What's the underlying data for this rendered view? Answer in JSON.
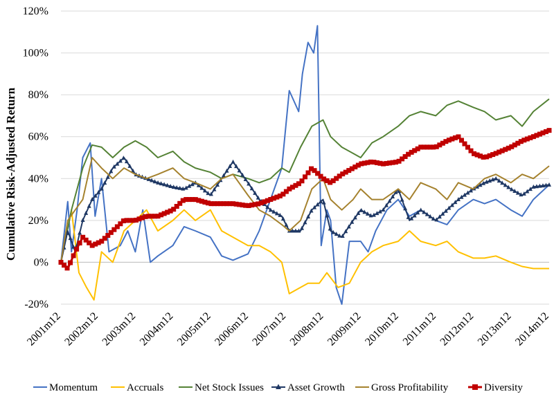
{
  "chart_data": {
    "type": "line",
    "title": "",
    "xlabel": "",
    "ylabel": "Cumulative Risk-Adjusted Return",
    "ylim": [
      -20,
      120
    ],
    "y_ticks": [
      "-20%",
      "0%",
      "20%",
      "40%",
      "60%",
      "80%",
      "100%",
      "120%"
    ],
    "y_tick_values": [
      -20,
      0,
      20,
      40,
      60,
      80,
      100,
      120
    ],
    "x_ticks": [
      "2001m12",
      "2002m12",
      "2003m12",
      "2004m12",
      "2005m12",
      "2006m12",
      "2007m12",
      "2008m12",
      "2009m12",
      "2010m12",
      "2011m12",
      "2012m12",
      "2013m12",
      "2014m12"
    ],
    "x_tick_values": [
      2001.92,
      2002.92,
      2003.92,
      2004.92,
      2005.92,
      2006.92,
      2007.92,
      2008.92,
      2009.92,
      2010.92,
      2011.92,
      2012.92,
      2013.92,
      2014.92
    ],
    "xlim": [
      2001.92,
      2014.92
    ],
    "grid": "horizontal",
    "legend_position": "bottom",
    "series": [
      {
        "name": "Momentum",
        "color": "#4472C4",
        "marker": "none",
        "x": [
          2001.92,
          2002.1,
          2002.2,
          2002.35,
          2002.5,
          2002.7,
          2002.83,
          2003.0,
          2003.2,
          2003.5,
          2003.7,
          2003.9,
          2004.1,
          2004.3,
          2004.5,
          2004.9,
          2005.2,
          2005.5,
          2005.9,
          2006.2,
          2006.5,
          2006.9,
          2007.2,
          2007.5,
          2007.8,
          2008.0,
          2008.25,
          2008.35,
          2008.5,
          2008.65,
          2008.75,
          2008.85,
          2009.0,
          2009.1,
          2009.25,
          2009.4,
          2009.6,
          2009.9,
          2010.1,
          2010.3,
          2010.6,
          2010.9,
          2011.2,
          2011.5,
          2011.9,
          2012.2,
          2012.5,
          2012.9,
          2013.2,
          2013.5,
          2013.9,
          2014.2,
          2014.5,
          2014.92
        ],
        "y": [
          0,
          29,
          5,
          25,
          50,
          57,
          22,
          40,
          5,
          8,
          15,
          5,
          25,
          0,
          3,
          8,
          17,
          15,
          12,
          3,
          1,
          4,
          15,
          30,
          45,
          82,
          72,
          90,
          105,
          100,
          113,
          8,
          25,
          20,
          -12,
          -20,
          10,
          10,
          5,
          15,
          25,
          30,
          22,
          25,
          20,
          18,
          25,
          30,
          28,
          30,
          25,
          22,
          30,
          37
        ]
      },
      {
        "name": "Accruals",
        "color": "#FFC000",
        "marker": "none",
        "x": [
          2001.92,
          2002.2,
          2002.4,
          2002.6,
          2002.8,
          2003.0,
          2003.3,
          2003.6,
          2003.9,
          2004.2,
          2004.5,
          2004.9,
          2005.2,
          2005.5,
          2005.9,
          2006.2,
          2006.5,
          2006.9,
          2007.2,
          2007.5,
          2007.8,
          2008.0,
          2008.3,
          2008.5,
          2008.8,
          2009.0,
          2009.3,
          2009.6,
          2009.9,
          2010.2,
          2010.5,
          2010.9,
          2011.2,
          2011.5,
          2011.9,
          2012.2,
          2012.5,
          2012.9,
          2013.2,
          2013.5,
          2013.9,
          2014.2,
          2014.5,
          2014.92
        ],
        "y": [
          0,
          25,
          -5,
          -12,
          -18,
          5,
          0,
          15,
          20,
          25,
          15,
          20,
          25,
          20,
          25,
          15,
          12,
          8,
          8,
          5,
          0,
          -15,
          -12,
          -10,
          -10,
          -5,
          -12,
          -10,
          0,
          5,
          8,
          10,
          15,
          10,
          8,
          10,
          5,
          2,
          2,
          3,
          0,
          -2,
          -3,
          -3
        ]
      },
      {
        "name": "Net Stock Issues",
        "color": "#548235",
        "marker": "none",
        "x": [
          2001.92,
          2002.2,
          2002.5,
          2002.75,
          2003.0,
          2003.3,
          2003.6,
          2003.9,
          2004.2,
          2004.5,
          2004.9,
          2005.2,
          2005.5,
          2005.9,
          2006.2,
          2006.5,
          2006.9,
          2007.2,
          2007.5,
          2007.8,
          2008.0,
          2008.3,
          2008.6,
          2008.9,
          2009.1,
          2009.4,
          2009.7,
          2009.9,
          2010.2,
          2010.5,
          2010.9,
          2011.2,
          2011.5,
          2011.9,
          2012.2,
          2012.5,
          2012.9,
          2013.2,
          2013.5,
          2013.9,
          2014.2,
          2014.5,
          2014.92
        ],
        "y": [
          0,
          25,
          45,
          56,
          55,
          50,
          55,
          58,
          55,
          50,
          53,
          48,
          45,
          43,
          40,
          42,
          40,
          38,
          40,
          45,
          43,
          55,
          65,
          68,
          60,
          55,
          52,
          50,
          57,
          60,
          65,
          70,
          72,
          70,
          75,
          77,
          74,
          72,
          68,
          70,
          65,
          72,
          78
        ]
      },
      {
        "name": "Asset Growth",
        "color": "#1F3864",
        "marker": "triangle",
        "x": [
          2001.92,
          2002.1,
          2002.3,
          2002.5,
          2002.75,
          2003.0,
          2003.3,
          2003.6,
          2003.9,
          2004.2,
          2004.5,
          2004.9,
          2005.2,
          2005.5,
          2005.9,
          2006.2,
          2006.5,
          2006.9,
          2007.2,
          2007.5,
          2007.8,
          2008.0,
          2008.3,
          2008.6,
          2008.9,
          2009.1,
          2009.4,
          2009.7,
          2009.9,
          2010.2,
          2010.5,
          2010.9,
          2011.2,
          2011.5,
          2011.9,
          2012.2,
          2012.5,
          2012.9,
          2013.2,
          2013.5,
          2013.9,
          2014.2,
          2014.5,
          2014.92
        ],
        "y": [
          0,
          15,
          5,
          20,
          30,
          35,
          45,
          50,
          42,
          40,
          38,
          36,
          35,
          38,
          32,
          40,
          48,
          38,
          30,
          25,
          22,
          15,
          15,
          25,
          30,
          15,
          12,
          20,
          25,
          22,
          25,
          35,
          20,
          25,
          20,
          25,
          30,
          35,
          38,
          40,
          35,
          32,
          36,
          37
        ]
      },
      {
        "name": "Gross Profitability",
        "color": "#A5822E",
        "marker": "none",
        "x": [
          2001.92,
          2002.1,
          2002.3,
          2002.5,
          2002.75,
          2003.0,
          2003.3,
          2003.6,
          2003.9,
          2004.2,
          2004.5,
          2004.9,
          2005.2,
          2005.5,
          2005.9,
          2006.2,
          2006.5,
          2006.9,
          2007.2,
          2007.5,
          2007.8,
          2008.0,
          2008.3,
          2008.6,
          2008.9,
          2009.1,
          2009.4,
          2009.7,
          2009.9,
          2010.2,
          2010.5,
          2010.9,
          2011.2,
          2011.5,
          2011.9,
          2012.2,
          2012.5,
          2012.9,
          2013.2,
          2013.5,
          2013.9,
          2014.2,
          2014.5,
          2014.92
        ],
        "y": [
          0,
          20,
          25,
          30,
          50,
          45,
          40,
          45,
          42,
          40,
          42,
          45,
          40,
          38,
          35,
          40,
          42,
          32,
          25,
          22,
          18,
          15,
          20,
          35,
          40,
          30,
          25,
          30,
          35,
          30,
          30,
          35,
          30,
          38,
          35,
          30,
          38,
          35,
          40,
          42,
          38,
          42,
          40,
          46
        ]
      },
      {
        "name": "Diversity",
        "color": "#C00000",
        "marker": "square",
        "x": [
          2001.92,
          2002.1,
          2002.3,
          2002.5,
          2002.75,
          2003.0,
          2003.3,
          2003.6,
          2003.9,
          2004.2,
          2004.5,
          2004.9,
          2005.2,
          2005.5,
          2005.9,
          2006.2,
          2006.5,
          2006.9,
          2007.2,
          2007.5,
          2007.8,
          2008.0,
          2008.3,
          2008.6,
          2008.9,
          2009.1,
          2009.4,
          2009.7,
          2009.9,
          2010.2,
          2010.5,
          2010.9,
          2011.2,
          2011.5,
          2011.9,
          2012.2,
          2012.5,
          2012.9,
          2013.2,
          2013.5,
          2013.9,
          2014.2,
          2014.5,
          2014.92
        ],
        "y": [
          0,
          -3,
          5,
          12,
          8,
          10,
          15,
          20,
          20,
          22,
          22,
          25,
          30,
          30,
          28,
          28,
          28,
          27,
          28,
          30,
          32,
          35,
          38,
          45,
          40,
          38,
          42,
          45,
          47,
          48,
          47,
          48,
          52,
          55,
          55,
          58,
          60,
          52,
          50,
          52,
          55,
          58,
          60,
          63
        ]
      }
    ]
  }
}
